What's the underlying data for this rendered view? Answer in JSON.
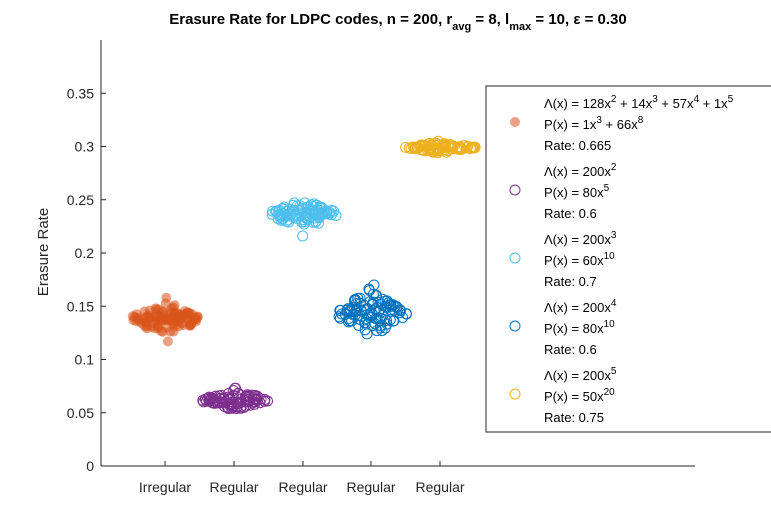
{
  "chart_data": {
    "type": "scatter",
    "title": {
      "prefix": "Erasure Rate for LDPC codes, n = 200, r",
      "sub1": "avg",
      "mid1": " = 8, l",
      "sub2": "max",
      "suffix": " = 10, ε = 0.30"
    },
    "ylabel": "Erasure Rate",
    "ylim": [
      0,
      0.4
    ],
    "yticks": [
      0,
      0.05,
      0.1,
      0.15,
      0.2,
      0.25,
      0.3,
      0.35
    ],
    "ytick_labels": [
      "0",
      "0.05",
      "0.1",
      "0.15",
      "0.2",
      "0.25",
      "0.3",
      "0.35"
    ],
    "categories": [
      "Irregular",
      "Regular",
      "Regular",
      "Regular",
      "Regular"
    ],
    "grid": false,
    "legend_position": "top-right",
    "series": [
      {
        "color": "#D95319",
        "marker": "filled-circle",
        "center": 0.138,
        "spread": 0.006,
        "min": 0.117,
        "max": 0.158,
        "legend": {
          "lambda": [
            [
              "Λ(x) = 128x",
              ""
            ],
            [
              "2",
              "sup"
            ],
            [
              " + 14x",
              ""
            ],
            [
              "3",
              "sup"
            ],
            [
              " + 57x",
              ""
            ],
            [
              "4",
              "sup"
            ],
            [
              " + 1x",
              ""
            ],
            [
              "5",
              "sup"
            ]
          ],
          "rho": [
            [
              "P(x) = 1x",
              ""
            ],
            [
              "3",
              "sup"
            ],
            [
              " + 66x",
              ""
            ],
            [
              "8",
              "sup"
            ]
          ],
          "rate": "Rate: 0.665"
        }
      },
      {
        "color": "#7E2F8E",
        "marker": "open-circle",
        "center": 0.062,
        "spread": 0.004,
        "min": 0.054,
        "max": 0.073,
        "legend": {
          "lambda": [
            [
              "Λ(x) = 200x",
              ""
            ],
            [
              "2",
              "sup"
            ]
          ],
          "rho": [
            [
              "P(x) = 80x",
              ""
            ],
            [
              "5",
              "sup"
            ]
          ],
          "rate": "Rate: 0.6"
        }
      },
      {
        "color": "#4DBEEE",
        "marker": "open-circle",
        "center": 0.237,
        "spread": 0.005,
        "min": 0.216,
        "max": 0.247,
        "legend": {
          "lambda": [
            [
              "Λ(x) = 200x",
              ""
            ],
            [
              "3",
              "sup"
            ]
          ],
          "rho": [
            [
              "P(x) = 60x",
              ""
            ],
            [
              "10",
              "sup"
            ]
          ],
          "rate": "Rate: 0.7"
        }
      },
      {
        "color": "#0072BD",
        "marker": "open-circle",
        "center": 0.143,
        "spread": 0.009,
        "min": 0.124,
        "max": 0.17,
        "legend": {
          "lambda": [
            [
              "Λ(x) = 200x",
              ""
            ],
            [
              "4",
              "sup"
            ]
          ],
          "rho": [
            [
              "P(x) = 80x",
              ""
            ],
            [
              "10",
              "sup"
            ]
          ],
          "rate": "Rate: 0.6"
        }
      },
      {
        "color": "#EDB120",
        "marker": "open-circle",
        "center": 0.299,
        "spread": 0.002,
        "min": 0.294,
        "max": 0.305,
        "legend": {
          "lambda": [
            [
              "Λ(x) = 200x",
              ""
            ],
            [
              "5",
              "sup"
            ]
          ],
          "rho": [
            [
              "P(x) = 50x",
              ""
            ],
            [
              "20",
              "sup"
            ]
          ],
          "rate": "Rate: 0.75"
        }
      }
    ]
  }
}
